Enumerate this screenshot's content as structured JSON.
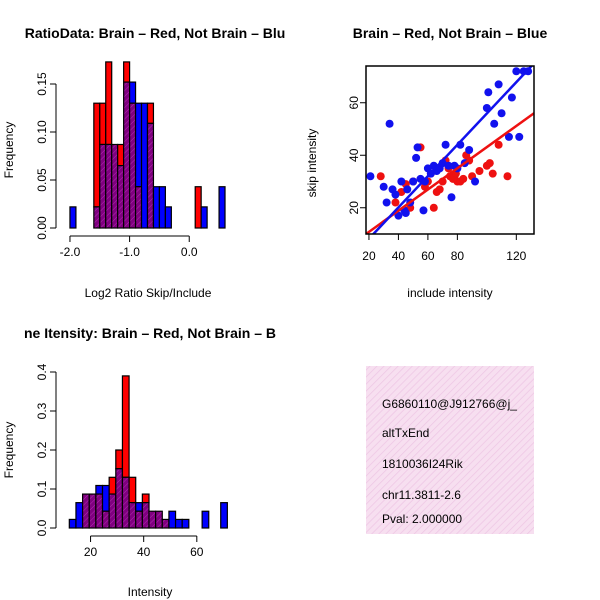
{
  "chart_data": [
    {
      "type": "histogram",
      "title": "RatioData: Brain – Red, Not Brain – Blu",
      "xlabel": "Log2 Ratio Skip/Include",
      "ylabel": "Frequency",
      "xlim": [
        -2.1,
        0.65
      ],
      "ylim": [
        0,
        0.175
      ],
      "xticks": [
        "-2.0",
        "-1.0",
        "0.0"
      ],
      "xtick_values": [
        -2.0,
        -1.0,
        0.0
      ],
      "yticks": [
        "0.00",
        "0.05",
        "0.10",
        "0.15"
      ],
      "ytick_values": [
        0,
        0.05,
        0.1,
        0.15
      ],
      "bin_width": 0.1,
      "series": [
        {
          "name": "Brain",
          "color": "#ff0000",
          "bins": [
            [
              -1.6,
              0.13
            ],
            [
              -1.5,
              0.13
            ],
            [
              -1.4,
              0.173
            ],
            [
              -1.3,
              0.087
            ],
            [
              -1.2,
              0.087
            ],
            [
              -1.1,
              0.173
            ],
            [
              -1.0,
              0.13
            ],
            [
              -0.9,
              0.043
            ],
            [
              -0.7,
              0.13
            ],
            [
              0.1,
              0.043
            ]
          ]
        },
        {
          "name": "Not Brain",
          "color": "#0000ff",
          "bins": [
            [
              -2.0,
              0.022
            ],
            [
              -1.6,
              0.022
            ],
            [
              -1.5,
              0.087
            ],
            [
              -1.4,
              0.087
            ],
            [
              -1.3,
              0.087
            ],
            [
              -1.2,
              0.065
            ],
            [
              -1.1,
              0.152
            ],
            [
              -1.0,
              0.152
            ],
            [
              -0.9,
              0.13
            ],
            [
              -0.8,
              0.13
            ],
            [
              -0.7,
              0.109
            ],
            [
              -0.6,
              0.043
            ],
            [
              -0.5,
              0.043
            ],
            [
              -0.4,
              0.022
            ],
            [
              0.2,
              0.022
            ],
            [
              0.5,
              0.043
            ]
          ]
        }
      ]
    },
    {
      "type": "scatter",
      "title": "Brain – Red, Not Brain – Blue",
      "xlabel": "include intensity",
      "ylabel": "skip intensity",
      "xlim": [
        18,
        132
      ],
      "ylim": [
        10,
        74
      ],
      "xticks": [
        "20",
        "40",
        "60",
        "80",
        "120"
      ],
      "xtick_values": [
        20,
        40,
        60,
        80,
        120
      ],
      "yticks": [
        "20",
        "40",
        "60"
      ],
      "ytick_values": [
        20,
        40,
        60
      ],
      "series": [
        {
          "name": "Brain",
          "color": "#ee1111",
          "points": [
            [
              28,
              32
            ],
            [
              38,
              22
            ],
            [
              42,
              26
            ],
            [
              45,
              29
            ],
            [
              48,
              20
            ],
            [
              50,
              30
            ],
            [
              55,
              43
            ],
            [
              58,
              28
            ],
            [
              60,
              30
            ],
            [
              62,
              33
            ],
            [
              64,
              20
            ],
            [
              66,
              26
            ],
            [
              68,
              27
            ],
            [
              70,
              30
            ],
            [
              72,
              38
            ],
            [
              74,
              35
            ],
            [
              75,
              32
            ],
            [
              77,
              31
            ],
            [
              78,
              32
            ],
            [
              79,
              33
            ],
            [
              80,
              30
            ],
            [
              82,
              30
            ],
            [
              84,
              31
            ],
            [
              86,
              40
            ],
            [
              88,
              38
            ],
            [
              90,
              32
            ],
            [
              95,
              34
            ],
            [
              100,
              36
            ],
            [
              102,
              37
            ],
            [
              104,
              33
            ],
            [
              108,
              44
            ],
            [
              114,
              32
            ]
          ],
          "regression": {
            "x0": 18,
            "y0": 10,
            "x1": 132,
            "y1": 56
          }
        },
        {
          "name": "Not Brain",
          "color": "#1111ee",
          "points": [
            [
              21,
              32
            ],
            [
              30,
              28
            ],
            [
              32,
              22
            ],
            [
              34,
              52
            ],
            [
              36,
              27
            ],
            [
              38,
              25
            ],
            [
              40,
              17
            ],
            [
              42,
              30
            ],
            [
              44,
              19
            ],
            [
              45,
              18
            ],
            [
              46,
              27
            ],
            [
              48,
              22
            ],
            [
              50,
              30
            ],
            [
              52,
              39
            ],
            [
              53,
              43
            ],
            [
              55,
              31
            ],
            [
              57,
              19
            ],
            [
              58,
              30
            ],
            [
              60,
              35
            ],
            [
              62,
              33
            ],
            [
              64,
              36
            ],
            [
              66,
              34
            ],
            [
              68,
              35
            ],
            [
              70,
              37
            ],
            [
              72,
              44
            ],
            [
              74,
              36
            ],
            [
              76,
              24
            ],
            [
              78,
              36
            ],
            [
              80,
              35
            ],
            [
              82,
              44
            ],
            [
              85,
              37
            ],
            [
              88,
              42
            ],
            [
              92,
              30
            ],
            [
              100,
              58
            ],
            [
              101,
              64
            ],
            [
              105,
              52
            ],
            [
              108,
              67
            ],
            [
              110,
              56
            ],
            [
              115,
              47
            ],
            [
              117,
              62
            ],
            [
              120,
              72
            ],
            [
              122,
              47
            ],
            [
              125,
              72
            ],
            [
              128,
              72
            ]
          ],
          "regression": {
            "x0": 18,
            "y0": 7,
            "x1": 132,
            "y1": 75
          }
        }
      ]
    },
    {
      "type": "histogram",
      "title": "ne Itensity: Brain – Red, Not Brain – B",
      "xlabel": "Intensity",
      "ylabel": "Frequency",
      "xlim": [
        10,
        74
      ],
      "ylim": [
        0,
        0.4
      ],
      "xticks": [
        "20",
        "40",
        "60"
      ],
      "xtick_values": [
        20,
        40,
        60
      ],
      "yticks": [
        "0.0",
        "0.1",
        "0.2",
        "0.3",
        "0.4"
      ],
      "ytick_values": [
        0,
        0.1,
        0.2,
        0.3,
        0.4
      ],
      "bin_width": 2.5,
      "series": [
        {
          "name": "Brain",
          "color": "#ff0000",
          "bins": [
            [
              17,
              0.087
            ],
            [
              19.5,
              0.087
            ],
            [
              22,
              0.087
            ],
            [
              24.5,
              0.043
            ],
            [
              27,
              0.13
            ],
            [
              29.5,
              0.2
            ],
            [
              32,
              0.39
            ],
            [
              34.5,
              0.13
            ],
            [
              37,
              0.043
            ],
            [
              39.5,
              0.087
            ],
            [
              42,
              0.043
            ],
            [
              44.5,
              0.043
            ],
            [
              47,
              0.022
            ]
          ]
        },
        {
          "name": "Not Brain",
          "color": "#0000ff",
          "bins": [
            [
              12,
              0.022
            ],
            [
              14.5,
              0.065
            ],
            [
              17,
              0.087
            ],
            [
              19.5,
              0.087
            ],
            [
              22,
              0.109
            ],
            [
              24.5,
              0.109
            ],
            [
              27,
              0.087
            ],
            [
              29.5,
              0.152
            ],
            [
              32,
              0.13
            ],
            [
              34.5,
              0.065
            ],
            [
              37,
              0.065
            ],
            [
              39.5,
              0.065
            ],
            [
              42,
              0.043
            ],
            [
              44.5,
              0.043
            ],
            [
              47,
              0.022
            ],
            [
              49.5,
              0.043
            ],
            [
              52,
              0.022
            ],
            [
              54.5,
              0.022
            ],
            [
              62,
              0.043
            ],
            [
              69,
              0.065
            ]
          ]
        }
      ]
    }
  ],
  "info_box": {
    "lines": [
      "G6860110@J912766@j_",
      "altTxEnd",
      "1810036I24Rik",
      "chr11.3811-2.6"
    ],
    "pval": "Pval: 2.000000",
    "pval_color": "#cc0000"
  },
  "colors": {
    "brain": "#ff0000",
    "not_brain": "#0000ff",
    "overlap": "#800080"
  }
}
